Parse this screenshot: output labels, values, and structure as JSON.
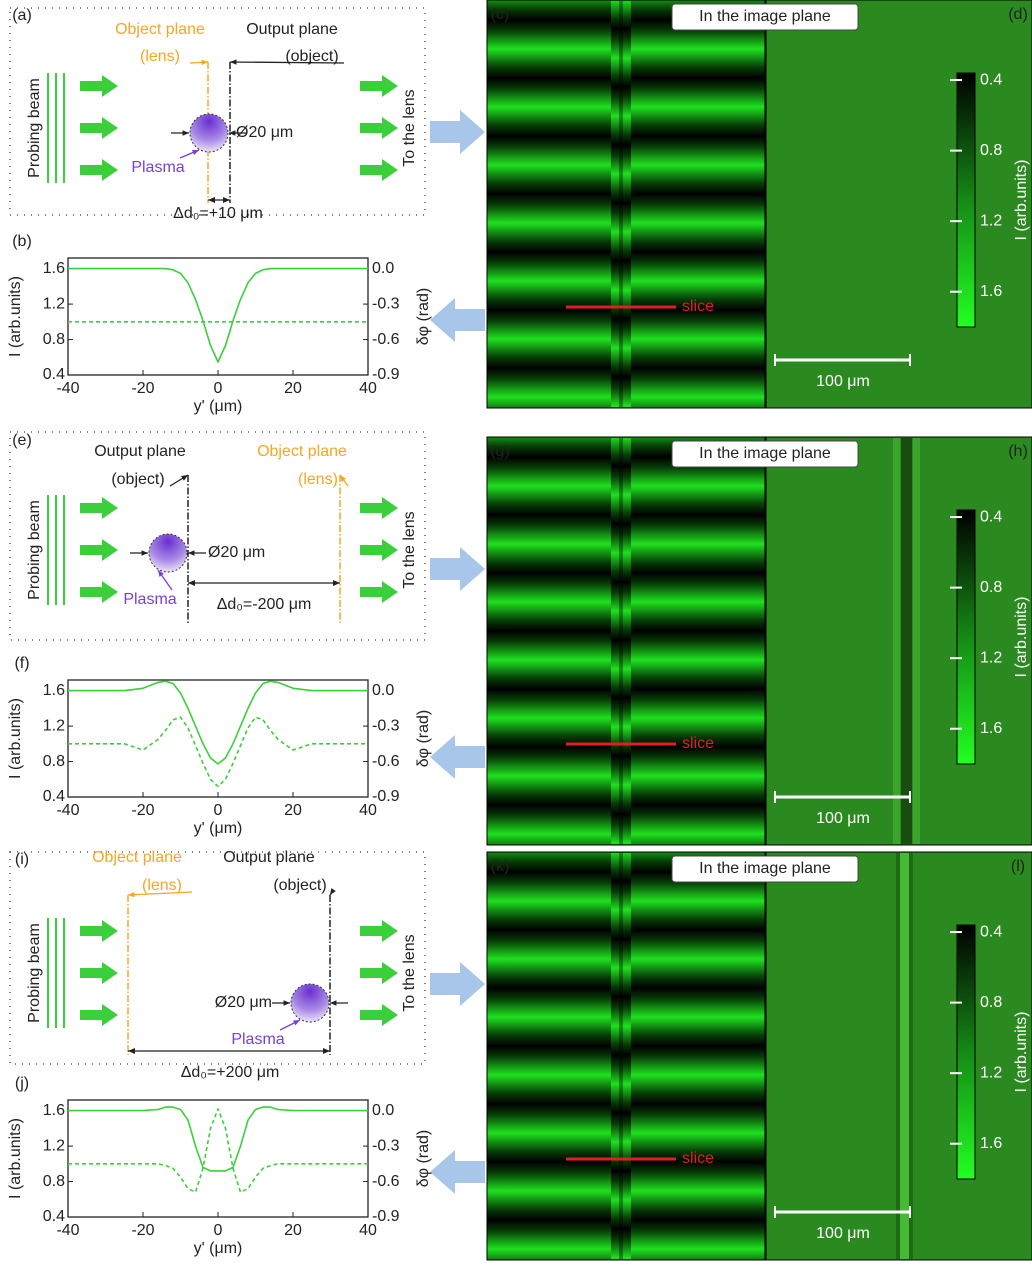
{
  "rows": [
    {
      "diagram": {
        "label": "(a)",
        "object_plane": "Object plane",
        "object_plane_sub": "(lens)",
        "output_plane": "Output plane",
        "output_plane_sub": "(object)",
        "beam": "Probing beam",
        "exit": "To the lens",
        "size": "Ø20 μm",
        "plasma": "Plasma",
        "distance": "Δd₀=+10 μm"
      },
      "image": {
        "label": "(c)",
        "title": "In the image plane",
        "slice": "slice"
      },
      "map": {
        "label": "(d)",
        "scalebar": "100 μm",
        "colorbar_label": "I (arb.units)",
        "clim": [
          0.36,
          1.8
        ],
        "ticks": [
          0.4,
          0.8,
          1.2,
          1.6
        ]
      }
    },
    {
      "diagram": {
        "label": "(e)",
        "object_plane": "Object plane",
        "object_plane_sub": "(lens)",
        "output_plane": "Output plane",
        "output_plane_sub": "(object)",
        "beam": "Probing beam",
        "exit": "To the lens",
        "size": "Ø20 μm",
        "plasma": "Plasma",
        "distance": "Δd₀=-200 μm"
      },
      "image": {
        "label": "(g)",
        "title": "In the image plane",
        "slice": "slice"
      },
      "map": {
        "label": "(h)",
        "scalebar": "100 μm",
        "colorbar_label": "I (arb.units)",
        "clim": [
          0.36,
          1.8
        ],
        "ticks": [
          0.4,
          0.8,
          1.2,
          1.6
        ]
      }
    },
    {
      "diagram": {
        "label": "(i)",
        "object_plane": "Object plane",
        "object_plane_sub": "(lens)",
        "output_plane": "Output plane",
        "output_plane_sub": "(object)",
        "beam": "Probing beam",
        "exit": "To the lens",
        "size": "Ø20 μm",
        "plasma": "Plasma",
        "distance": "Δd₀=+200 μm"
      },
      "image": {
        "label": "(k)",
        "title": "In the image plane",
        "slice": "slice"
      },
      "map": {
        "label": "(l)",
        "scalebar": "100 μm",
        "colorbar_label": "I (arb.units)",
        "clim": [
          0.36,
          1.8
        ],
        "ticks": [
          0.4,
          0.8,
          1.2,
          1.6
        ]
      }
    }
  ],
  "chart_data": [
    {
      "type": "line",
      "label": "(b)",
      "xlabel": "y' (μm)",
      "ylabel": "I (arb.units)",
      "y2label": "δφ (rad)",
      "x": [
        -40,
        -25,
        -20,
        -16,
        -14,
        -12,
        -10,
        -8,
        -6,
        -4,
        -2,
        0,
        2,
        4,
        6,
        8,
        10,
        12,
        14,
        16,
        20,
        25,
        40
      ],
      "xlim": [
        -40,
        40
      ],
      "xticks": [
        -40,
        -20,
        0,
        20,
        40
      ],
      "ylim": [
        0.4,
        1.72
      ],
      "yticks": [
        0.4,
        0.8,
        1.2,
        1.6
      ],
      "y2lim": [
        -0.9,
        0.09
      ],
      "y2ticks": [
        {
          "value": 0,
          "label": "0.0"
        },
        -0.3,
        -0.6,
        -0.9
      ],
      "series": [
        {
          "color": "#3ccf3c",
          "dashed": true,
          "values": [
            1.0,
            1.0,
            1.0,
            1.0,
            1.0,
            1.0,
            1.0,
            1.0,
            1.0,
            1.0,
            1.0,
            1.0,
            1.0,
            1.0,
            1.0,
            1.0,
            1.0,
            1.0,
            1.0,
            1.0,
            1.0,
            1.0,
            1.0
          ]
        },
        {
          "color": "#3ccf3c",
          "dashed": false,
          "axis": "y2",
          "values": [
            0,
            0,
            0,
            0,
            0,
            -0.01,
            -0.04,
            -0.12,
            -0.26,
            -0.44,
            -0.65,
            -0.79,
            -0.65,
            -0.44,
            -0.26,
            -0.12,
            -0.04,
            -0.01,
            0,
            0,
            0,
            0,
            0
          ]
        }
      ]
    },
    {
      "type": "line",
      "label": "(f)",
      "xlabel": "y' (μm)",
      "ylabel": "I (arb.units)",
      "y2label": "δφ (rad)",
      "x": [
        -40,
        -25,
        -20,
        -16,
        -14,
        -12,
        -10,
        -8,
        -6,
        -4,
        -2,
        0,
        2,
        4,
        6,
        8,
        10,
        12,
        14,
        16,
        20,
        25,
        40
      ],
      "xlim": [
        -40,
        40
      ],
      "xticks": [
        -40,
        -20,
        0,
        20,
        40
      ],
      "ylim": [
        0.4,
        1.72
      ],
      "yticks": [
        0.4,
        0.8,
        1.2,
        1.6
      ],
      "y2lim": [
        -0.9,
        0.09
      ],
      "y2ticks": [
        {
          "value": 0,
          "label": "0.0"
        },
        -0.3,
        -0.6,
        -0.9
      ],
      "series": [
        {
          "color": "#3ccf3c",
          "dashed": true,
          "values": [
            1.0,
            1.0,
            0.93,
            1.05,
            1.15,
            1.27,
            1.3,
            1.18,
            0.98,
            0.78,
            0.6,
            0.52,
            0.6,
            0.78,
            0.98,
            1.18,
            1.3,
            1.27,
            1.15,
            1.05,
            0.93,
            1.0,
            1.0
          ]
        },
        {
          "color": "#3ccf3c",
          "dashed": false,
          "axis": "y2",
          "values": [
            0,
            0,
            0.02,
            0.07,
            0.08,
            0.06,
            -0.02,
            -0.15,
            -0.3,
            -0.45,
            -0.57,
            -0.62,
            -0.57,
            -0.45,
            -0.3,
            -0.15,
            -0.02,
            0.06,
            0.08,
            0.07,
            0.02,
            0,
            0
          ]
        }
      ]
    },
    {
      "type": "line",
      "label": "(j)",
      "xlabel": "y' (μm)",
      "ylabel": "I (arb.units)",
      "y2label": "δφ (rad)",
      "x": [
        -40,
        -25,
        -20,
        -16,
        -14,
        -12,
        -10,
        -8,
        -6,
        -4,
        -2,
        0,
        2,
        4,
        6,
        8,
        10,
        12,
        14,
        16,
        20,
        25,
        40
      ],
      "xlim": [
        -40,
        40
      ],
      "xticks": [
        -40,
        -20,
        0,
        20,
        40
      ],
      "ylim": [
        0.4,
        1.72
      ],
      "yticks": [
        0.4,
        0.8,
        1.2,
        1.6
      ],
      "y2lim": [
        -0.9,
        0.09
      ],
      "y2ticks": [
        {
          "value": 0,
          "label": "0.0"
        },
        -0.3,
        -0.6,
        -0.9
      ],
      "series": [
        {
          "color": "#3ccf3c",
          "dashed": true,
          "values": [
            1.0,
            1.0,
            1.0,
            1.0,
            0.98,
            0.95,
            0.85,
            0.72,
            0.68,
            0.95,
            1.4,
            1.62,
            1.4,
            0.95,
            0.68,
            0.72,
            0.85,
            0.95,
            0.98,
            1.0,
            1.0,
            1.0,
            1.0
          ]
        },
        {
          "color": "#3ccf3c",
          "dashed": false,
          "axis": "y2",
          "values": [
            0,
            0,
            0,
            0.01,
            0.03,
            0.03,
            0.01,
            -0.08,
            -0.3,
            -0.48,
            -0.51,
            -0.51,
            -0.51,
            -0.48,
            -0.3,
            -0.08,
            0.01,
            0.03,
            0.03,
            0.01,
            0,
            0,
            0
          ]
        }
      ]
    }
  ]
}
